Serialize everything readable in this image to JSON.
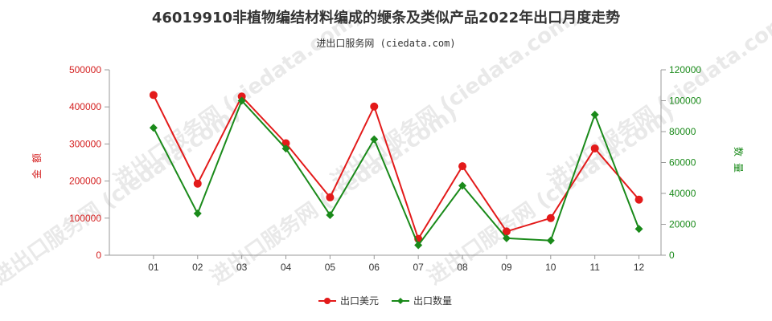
{
  "chart_data": {
    "type": "line",
    "title": "46019910非植物编结材料编成的缏条及类似产品2022年出口月度走势",
    "subtitle": "进出口服务网 (ciedata.com)",
    "watermark": "进出口服务网 (ciedata.com)",
    "categories": [
      "01",
      "02",
      "03",
      "04",
      "05",
      "06",
      "07",
      "08",
      "09",
      "10",
      "11",
      "12"
    ],
    "left_axis": {
      "label": "金额",
      "ylim": [
        0,
        500000
      ],
      "ticks": [
        "0",
        "100000",
        "200000",
        "300000",
        "400000",
        "500000"
      ],
      "color": "#d42020"
    },
    "right_axis": {
      "label": "数量",
      "ylim": [
        0,
        120000
      ],
      "ticks": [
        "0",
        "20000",
        "40000",
        "60000",
        "80000",
        "100000",
        "120000"
      ],
      "color": "#1a8a1a"
    },
    "series": [
      {
        "name": "出口美元",
        "axis": "left",
        "color": "#e31a1a",
        "marker": "circle",
        "values": [
          432000,
          193000,
          428000,
          302000,
          156000,
          401000,
          44000,
          240000,
          64000,
          100000,
          288000,
          150000
        ]
      },
      {
        "name": "出口数量",
        "axis": "right",
        "color": "#1a8a1a",
        "marker": "diamond",
        "values": [
          82500,
          27000,
          100000,
          69000,
          26000,
          75000,
          6500,
          45000,
          11000,
          9500,
          91000,
          17000
        ]
      }
    ],
    "grid": false,
    "legend_position": "bottom-center"
  }
}
